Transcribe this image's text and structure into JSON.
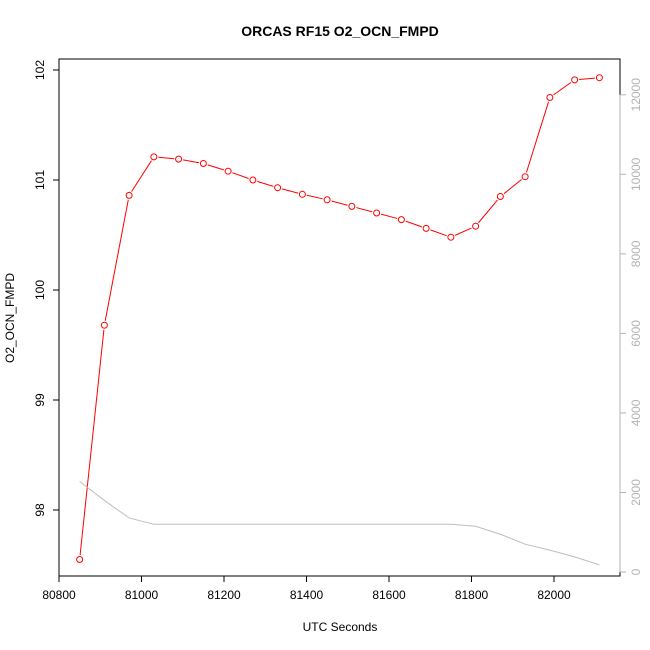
{
  "chart_data": {
    "type": "line",
    "title": "ORCAS RF15 O2_OCN_FMPD",
    "xlabel": "UTC Seconds",
    "ylabel": "O2_OCN_FMPD",
    "xlim": [
      80800,
      82160
    ],
    "ylim": [
      97.4,
      102.1
    ],
    "y2lim": [
      -100,
      12900
    ],
    "x_ticks": [
      80800,
      81000,
      81200,
      81400,
      81600,
      81800,
      82000
    ],
    "y_ticks": [
      98,
      99,
      100,
      101,
      102
    ],
    "y2_ticks": [
      0,
      2000,
      4000,
      6000,
      8000,
      10000,
      12000
    ],
    "grid": false,
    "series": [
      {
        "color": "#ff0000",
        "marker": "circle",
        "x": [
          80850,
          80910,
          80970,
          81030,
          81090,
          81150,
          81210,
          81270,
          81330,
          81390,
          81450,
          81510,
          81570,
          81630,
          81690,
          81750,
          81810,
          81870,
          81930,
          81990,
          82050,
          82110
        ],
        "y": [
          97.55,
          99.68,
          100.86,
          101.21,
          101.19,
          101.15,
          101.08,
          101.0,
          100.93,
          100.87,
          100.82,
          100.76,
          100.7,
          100.64,
          100.56,
          100.48,
          100.58,
          100.85,
          101.03,
          101.75,
          101.91,
          101.93
        ]
      },
      {
        "color": "#bebebe",
        "axis": "right",
        "x": [
          80850,
          80910,
          80970,
          81030,
          81090,
          81150,
          81210,
          81270,
          81330,
          81390,
          81450,
          81510,
          81570,
          81630,
          81690,
          81750,
          81810,
          81870,
          81930,
          81990,
          82050,
          82110
        ],
        "y": [
          2280,
          1800,
          1360,
          1200,
          1200,
          1200,
          1200,
          1200,
          1200,
          1200,
          1200,
          1200,
          1200,
          1200,
          1200,
          1200,
          1150,
          950,
          700,
          550,
          380,
          180
        ]
      }
    ]
  }
}
